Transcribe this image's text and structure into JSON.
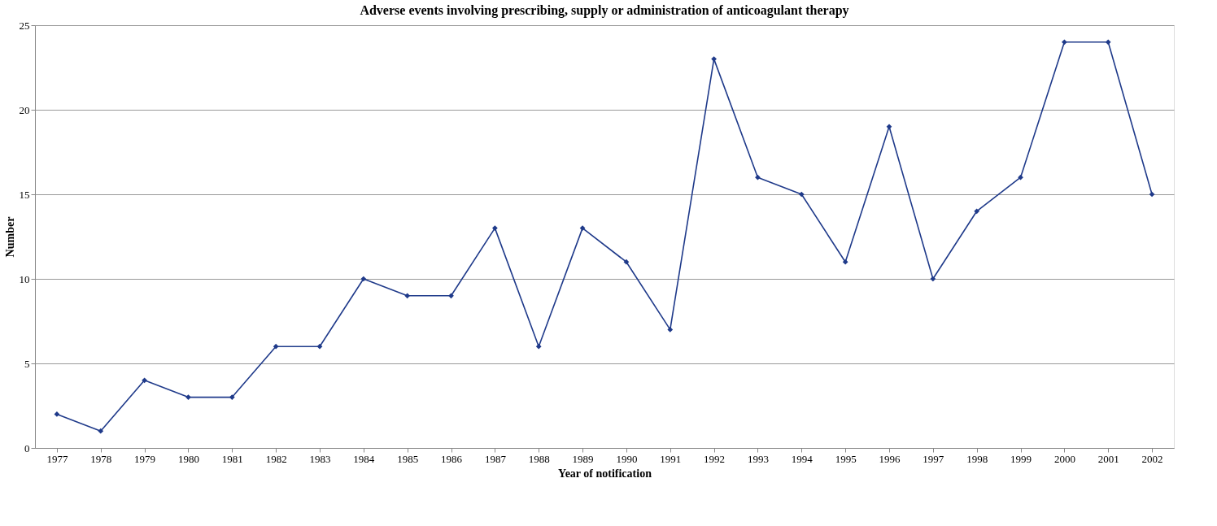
{
  "chart_data": {
    "type": "line",
    "title": "Adverse events involving prescribing, supply or administration of anticoagulant therapy",
    "xlabel": "Year of notification",
    "ylabel": "Number",
    "categories": [
      "1977",
      "1978",
      "1979",
      "1980",
      "1981",
      "1982",
      "1983",
      "1984",
      "1985",
      "1986",
      "1987",
      "1988",
      "1989",
      "1990",
      "1991",
      "1992",
      "1993",
      "1994",
      "1995",
      "1996",
      "1997",
      "1998",
      "1999",
      "2000",
      "2001",
      "2002"
    ],
    "series": [
      {
        "color": "#1f3a8a",
        "values": [
          2,
          1,
          4,
          3,
          3,
          6,
          6,
          10,
          9,
          9,
          13,
          6,
          13,
          11,
          7,
          23,
          16,
          15,
          11,
          19,
          10,
          14,
          16,
          24,
          24,
          15
        ]
      }
    ],
    "ylim": [
      0,
      25
    ],
    "yticks": [
      0,
      5,
      10,
      15,
      20,
      25
    ],
    "grid": "y",
    "marker": "diamond",
    "line_style": "solid"
  }
}
